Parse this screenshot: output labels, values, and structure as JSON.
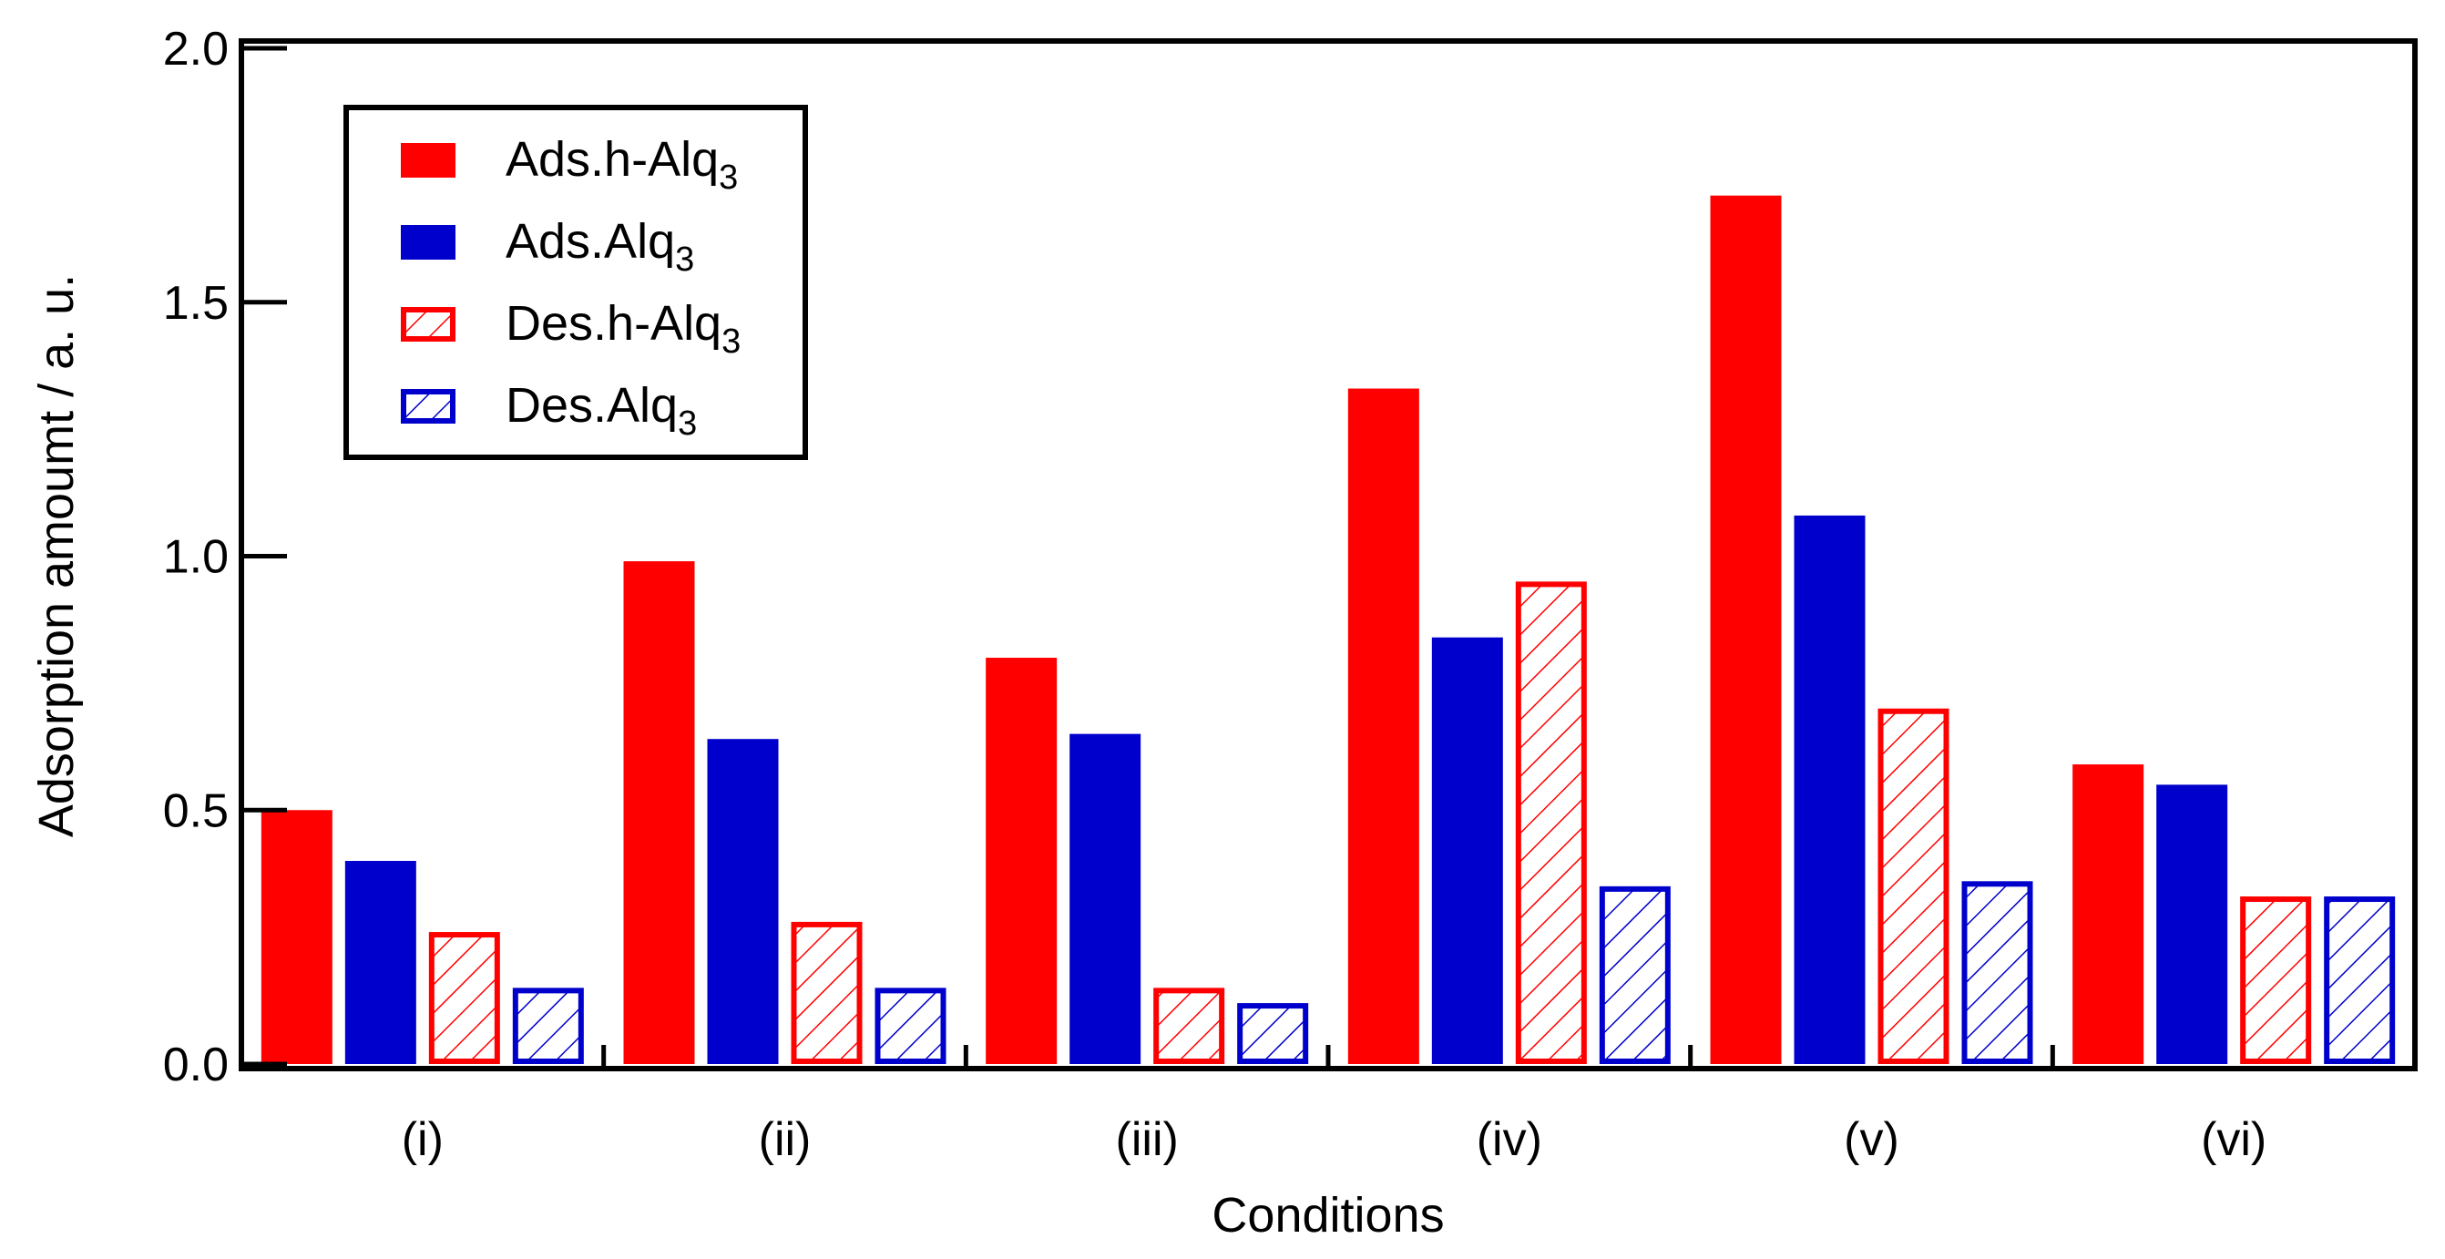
{
  "chart_data": {
    "type": "bar",
    "title": "",
    "xlabel": "Conditions",
    "ylabel": "Adsorption amoumt / a. u.",
    "ylim": [
      0,
      2.0
    ],
    "yticks": [
      "0.0",
      "0.5",
      "1.0",
      "1.5",
      "2.0"
    ],
    "categories": [
      "(i)",
      "(ii)",
      "(iii)",
      "(iv)",
      "(v)",
      "(vi)"
    ],
    "legend_position": "top-left",
    "series": [
      {
        "name_base": "Ads.h-Alq",
        "name_sub": "3",
        "style": "solid",
        "color": "#ff0000",
        "values": [
          0.5,
          0.99,
          0.8,
          1.33,
          1.71,
          0.59
        ]
      },
      {
        "name_base": "Ads.Alq",
        "name_sub": "3",
        "style": "solid",
        "color": "#0000cc",
        "values": [
          0.4,
          0.64,
          0.65,
          0.84,
          1.08,
          0.55
        ]
      },
      {
        "name_base": "Des.h-Alq",
        "name_sub": "3",
        "style": "hatched",
        "color": "#ff0000",
        "values": [
          0.26,
          0.28,
          0.15,
          0.95,
          0.7,
          0.33
        ]
      },
      {
        "name_base": "Des.Alq",
        "name_sub": "3",
        "style": "hatched",
        "color": "#0000cc",
        "values": [
          0.15,
          0.15,
          0.12,
          0.35,
          0.36,
          0.33
        ]
      }
    ]
  }
}
